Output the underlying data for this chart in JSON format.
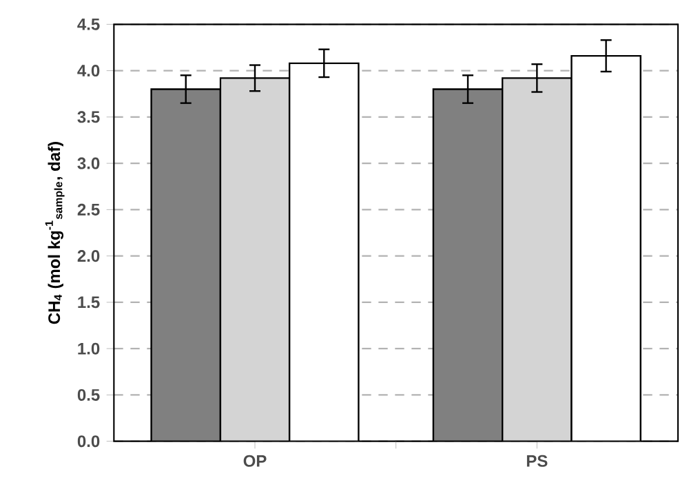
{
  "chart_data": {
    "type": "bar",
    "ylabel": "CH$_{4}$ (mol kg$^{-1}$$_{sample}$, daf)",
    "categories": [
      "OP",
      "PS"
    ],
    "series": [
      {
        "color": "#808080",
        "values": [
          3.8,
          3.8
        ],
        "errors": [
          0.15,
          0.15
        ]
      },
      {
        "color": "#d4d4d4",
        "values": [
          3.92,
          3.92
        ],
        "errors": [
          0.14,
          0.15
        ]
      },
      {
        "color": "#ffffff",
        "values": [
          4.08,
          4.16
        ],
        "errors": [
          0.15,
          0.17
        ]
      }
    ],
    "ylim": [
      0,
      4.5
    ],
    "yticks": [
      {
        "value": 0,
        "label": "0.0"
      },
      {
        "value": 0.5,
        "label": "0.5"
      },
      {
        "value": 1,
        "label": "1.0"
      },
      {
        "value": 1.5,
        "label": "1.5"
      },
      {
        "value": 2,
        "label": "2.0"
      },
      {
        "value": 2.5,
        "label": "2.5"
      },
      {
        "value": 3,
        "label": "3.0"
      },
      {
        "value": 3.5,
        "label": "3.5"
      },
      {
        "value": 4,
        "label": "4.0"
      },
      {
        "value": 4.5,
        "label": "4.5"
      }
    ],
    "grid": "y"
  }
}
